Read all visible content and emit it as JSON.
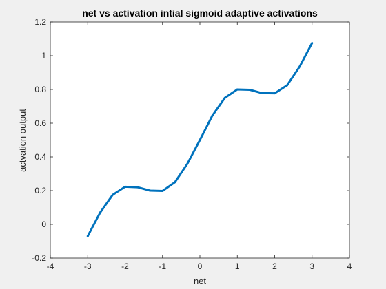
{
  "chart_data": {
    "type": "line",
    "title": "net vs activation intial sigmoid adaptive activations",
    "xlabel": "net",
    "ylabel": "actvation output",
    "xlim": [
      -4,
      4
    ],
    "ylim": [
      -0.2,
      1.2
    ],
    "xticks": [
      -4,
      -3,
      -2,
      -1,
      0,
      1,
      2,
      3,
      4
    ],
    "yticks": [
      -0.2,
      0,
      0.2,
      0.4,
      0.6,
      0.8,
      1,
      1.2
    ],
    "xtick_labels": [
      "-4",
      "-3",
      "-2",
      "-1",
      "0",
      "1",
      "2",
      "3",
      "4"
    ],
    "ytick_labels": [
      "-0.2",
      "0",
      "0.2",
      "0.4",
      "0.6",
      "0.8",
      "1",
      "1.2"
    ],
    "grid": false,
    "line_color": "#0072bd",
    "series": [
      {
        "x": [
          -3,
          -2.667,
          -2.333,
          -2,
          -1.667,
          -1.333,
          -1,
          -0.667,
          -0.333,
          0,
          0.333,
          0.667,
          1,
          1.333,
          1.667,
          2,
          2.333,
          2.667,
          3
        ],
        "y": [
          -0.07,
          0.07,
          0.175,
          0.223,
          0.22,
          0.2,
          0.198,
          0.25,
          0.36,
          0.5,
          0.645,
          0.75,
          0.8,
          0.798,
          0.778,
          0.777,
          0.825,
          0.935,
          1.075
        ]
      }
    ]
  }
}
